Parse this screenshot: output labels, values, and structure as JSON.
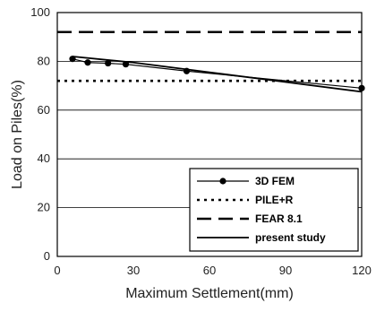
{
  "chart_data": {
    "type": "line",
    "title": "",
    "xlabel": "Maximum Settlement(mm)",
    "ylabel": "Load on Piles(%)",
    "xlim": [
      0,
      120
    ],
    "ylim": [
      0,
      100
    ],
    "xticks": [
      "0",
      "30",
      "60",
      "90",
      "120"
    ],
    "yticks": [
      "0",
      "20",
      "40",
      "60",
      "80",
      "100"
    ],
    "xtick_values": [
      0,
      30,
      60,
      90,
      120
    ],
    "ytick_values": [
      0,
      20,
      40,
      60,
      80,
      100
    ],
    "grid": "horizontal",
    "legend_position": "bottom-right",
    "series": [
      {
        "name": "3D FEM",
        "style": "solid-with-markers",
        "color": "#000000",
        "x": [
          6,
          12,
          20,
          27,
          51,
          120
        ],
        "y": [
          81,
          79.5,
          79.2,
          78.8,
          76,
          69
        ]
      },
      {
        "name": "PILE+R",
        "style": "dotted",
        "color": "#000000",
        "x": [
          0,
          120
        ],
        "y": [
          72,
          72
        ]
      },
      {
        "name": "FEAR 8.1",
        "style": "dashed",
        "color": "#000000",
        "x": [
          0,
          120
        ],
        "y": [
          92,
          92
        ]
      },
      {
        "name": "present study",
        "style": "solid",
        "color": "#000000",
        "x": [
          6,
          30,
          60,
          90,
          120
        ],
        "y": [
          82,
          79.5,
          75.5,
          71.5,
          67.5
        ]
      }
    ]
  }
}
